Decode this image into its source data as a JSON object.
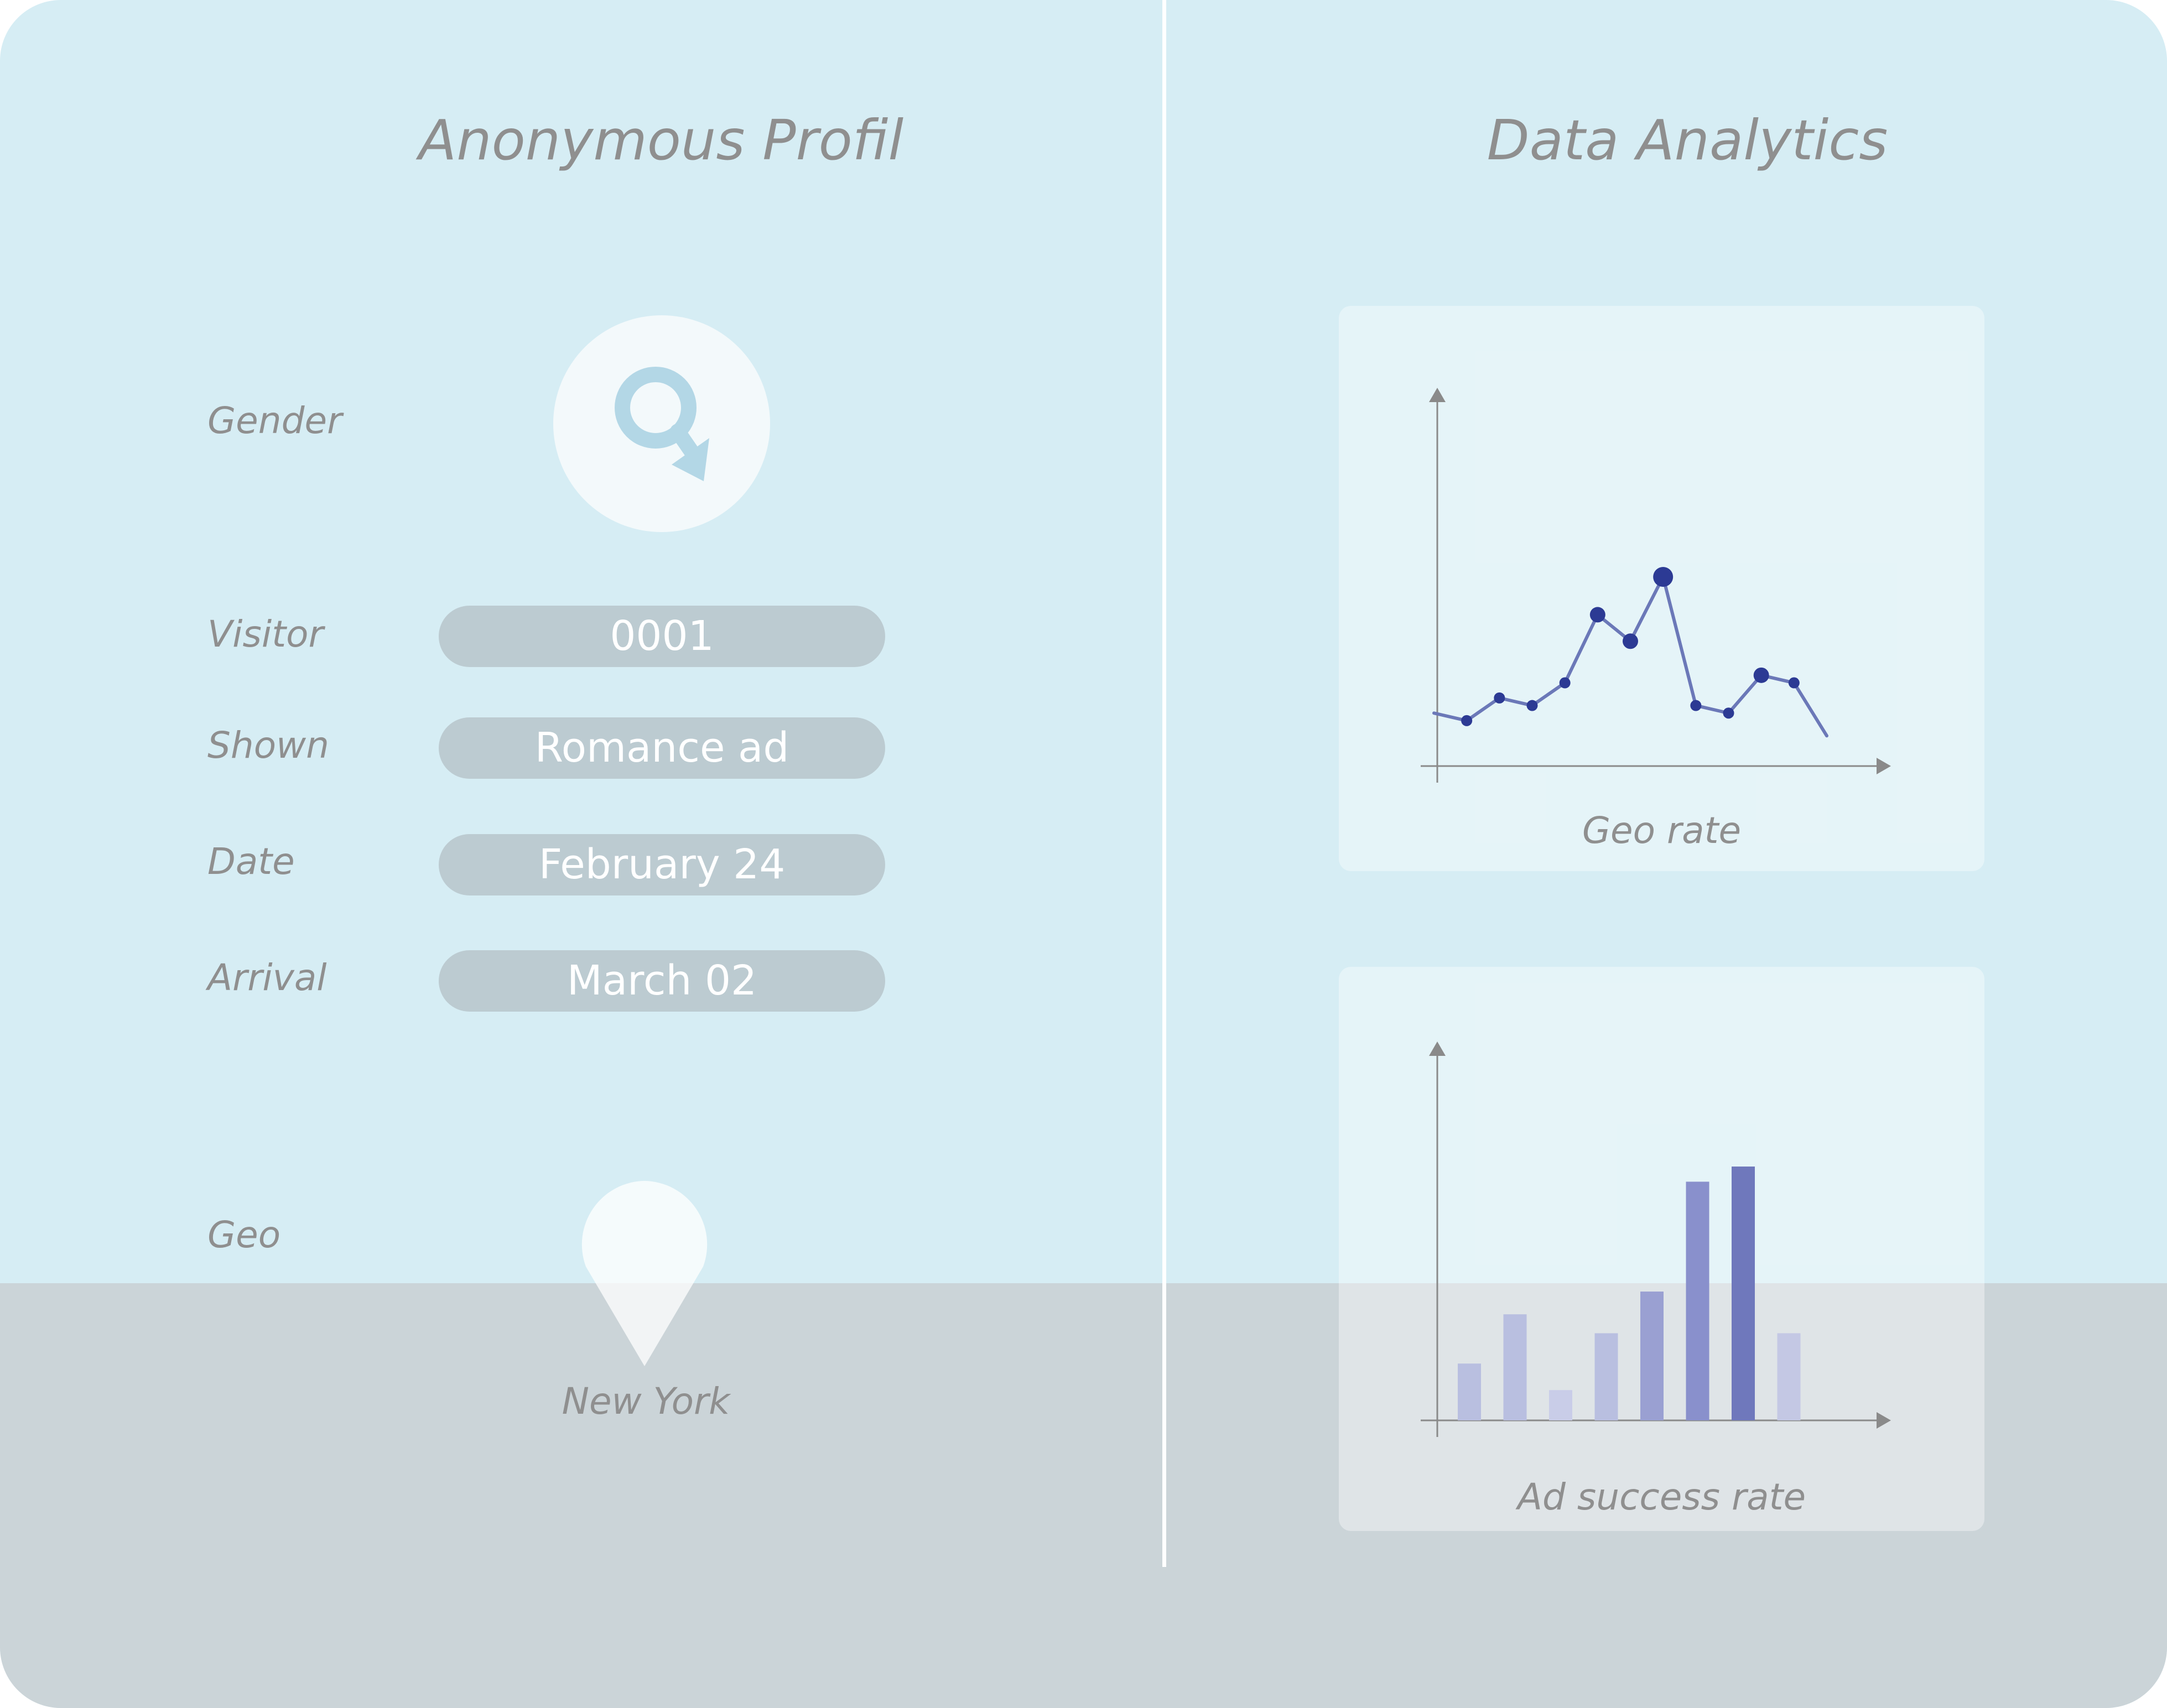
{
  "profile": {
    "title": "Anonymous Profil",
    "gender_label": "Gender",
    "gender_icon": "male-symbol-icon",
    "fields": [
      {
        "label": "Visitor",
        "value": "0001"
      },
      {
        "label": "Shown",
        "value": "Romance ad"
      },
      {
        "label": "Date",
        "value": "February 24"
      },
      {
        "label": "Arrival",
        "value": "March 02"
      }
    ],
    "geo_label": "Geo",
    "geo_icon": "location-pin-icon",
    "geo_value": "New York"
  },
  "analytics": {
    "title": "Data Analytics"
  },
  "colors": {
    "background": "#d6edf4",
    "bottom_band": "#cbd4d8",
    "pill": "#bccbd1",
    "text_muted": "#8f8f8f",
    "accent_navy": "#2c3a94",
    "line_series": "#6b78b8",
    "gender_icon": "#b3d7e6"
  },
  "chart_data": [
    {
      "type": "line",
      "title": "",
      "xlabel": "Geo rate",
      "ylabel": "",
      "ylim": [
        0,
        100
      ],
      "x": [
        1,
        2,
        3,
        4,
        5,
        6,
        7,
        8,
        9,
        10,
        11,
        12,
        13
      ],
      "values": [
        14,
        12,
        18,
        16,
        22,
        40,
        33,
        50,
        16,
        14,
        24,
        22,
        8
      ],
      "highlight_index": 7
    },
    {
      "type": "bar",
      "title": "",
      "xlabel": "Ad success rate",
      "ylabel": "",
      "ylim": [
        0,
        100
      ],
      "categories": [
        "1",
        "2",
        "3",
        "4",
        "5",
        "6",
        "7",
        "8"
      ],
      "values": [
        15,
        28,
        8,
        23,
        34,
        63,
        67,
        23
      ]
    }
  ]
}
